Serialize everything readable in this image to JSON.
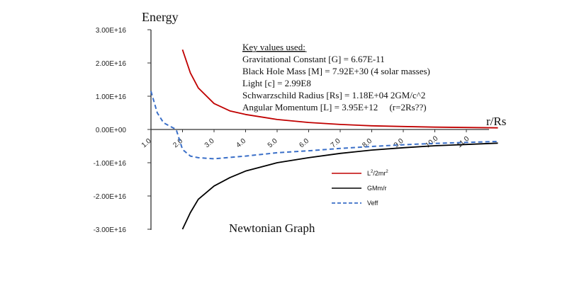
{
  "chart_data": {
    "type": "line",
    "title": "Newtonian Graph",
    "ylabel": "Energy",
    "xlabel": "r/Rs",
    "ylim": [
      -3e+16,
      3e+16
    ],
    "xlim": [
      1.0,
      12.0
    ],
    "y_ticks": [
      {
        "value": 3e+16,
        "label": "3.00E+16"
      },
      {
        "value": 2e+16,
        "label": "2.00E+16"
      },
      {
        "value": 1e+16,
        "label": "1.00E+16"
      },
      {
        "value": 0,
        "label": "0.00E+00"
      },
      {
        "value": -1e+16,
        "label": "-1.00E+16"
      },
      {
        "value": -2e+16,
        "label": "-2.00E+16"
      },
      {
        "value": -3e+16,
        "label": "-3.00E+16"
      }
    ],
    "x_ticks": [
      {
        "value": 1,
        "label": "1.0"
      },
      {
        "value": 2,
        "label": "2.0"
      },
      {
        "value": 3,
        "label": "3.0"
      },
      {
        "value": 4,
        "label": "4.0"
      },
      {
        "value": 5,
        "label": "5.0"
      },
      {
        "value": 6,
        "label": "6.0"
      },
      {
        "value": 7,
        "label": "7.0"
      },
      {
        "value": 8,
        "label": "8.0"
      },
      {
        "value": 9,
        "label": "9.0"
      },
      {
        "value": 10,
        "label": "10.0"
      },
      {
        "value": 11,
        "label": "11.0"
      }
    ],
    "grid": false,
    "legend_position": "bottom-right",
    "series": [
      {
        "name": "L²/2mr²",
        "legend_main": "L",
        "legend_sup1": "2",
        "legend_mid": "/2mr",
        "legend_sup2": "2",
        "color": "#c00000",
        "style": "solid",
        "x": [
          2.0,
          2.25,
          2.5,
          3.0,
          3.5,
          4.0,
          5.0,
          6.0,
          7.0,
          8.0,
          9.0,
          10.0,
          11.0,
          12.0
        ],
        "y": [
          2.4e+16,
          1.7e+16,
          1.25e+16,
          7800000000000000.0,
          5600000000000000.0,
          4500000000000000.0,
          3000000000000000.0,
          2100000000000000.0,
          1500000000000000.0,
          1100000000000000.0,
          900000000000000.0,
          700000000000000.0,
          600000000000000.0,
          500000000000000.0
        ]
      },
      {
        "name": "GMm/r",
        "legend_main": "GMm/r",
        "color": "#000000",
        "style": "solid",
        "x": [
          2.0,
          2.25,
          2.5,
          3.0,
          3.5,
          4.0,
          5.0,
          6.0,
          7.0,
          8.0,
          9.0,
          10.0,
          11.0,
          12.0
        ],
        "y": [
          -3e+16,
          -2.5e+16,
          -2.1e+16,
          -1.7e+16,
          -1.45e+16,
          -1.25e+16,
          -1e+16,
          -8500000000000000.0,
          -7200000000000000.0,
          -6200000000000000.0,
          -5500000000000000.0,
          -4900000000000000.0,
          -4500000000000000.0,
          -4100000000000000.0
        ]
      },
      {
        "name": "Veff",
        "legend_main": "Veff",
        "color": "#3a6fc8",
        "style": "dashed",
        "x": [
          1.0,
          1.2,
          1.4,
          1.6,
          1.8,
          2.0,
          2.25,
          2.5,
          3.0,
          4.0,
          5.0,
          6.0,
          7.0,
          8.0,
          9.0,
          10.0,
          11.0,
          12.0
        ],
        "y": [
          1.15e+16,
          5000000000000000.0,
          2000000000000000.0,
          1000000000000000.0,
          0.0,
          -6000000000000000.0,
          -8000000000000000.0,
          -8500000000000000.0,
          -8800000000000000.0,
          -8000000000000000.0,
          -7000000000000000.0,
          -6400000000000000.0,
          -5700000000000000.0,
          -5100000000000000.0,
          -4600000000000000.0,
          -4200000000000000.0,
          -3900000000000000.0,
          -3600000000000000.0
        ]
      }
    ],
    "annotations": {
      "heading": "Key values used:",
      "lines": [
        "Gravitational Constant [G] = 6.67E-11",
        "Black Hole Mass [M] = 7.92E+30 (4 solar masses)",
        "Light [c] = 2.99E8",
        "Schwarzschild Radius [Rs] = 1.18E+04 2GM/c^2",
        "Angular Momentum [L] = 3.95E+12     (r=2Rs??)"
      ]
    }
  }
}
